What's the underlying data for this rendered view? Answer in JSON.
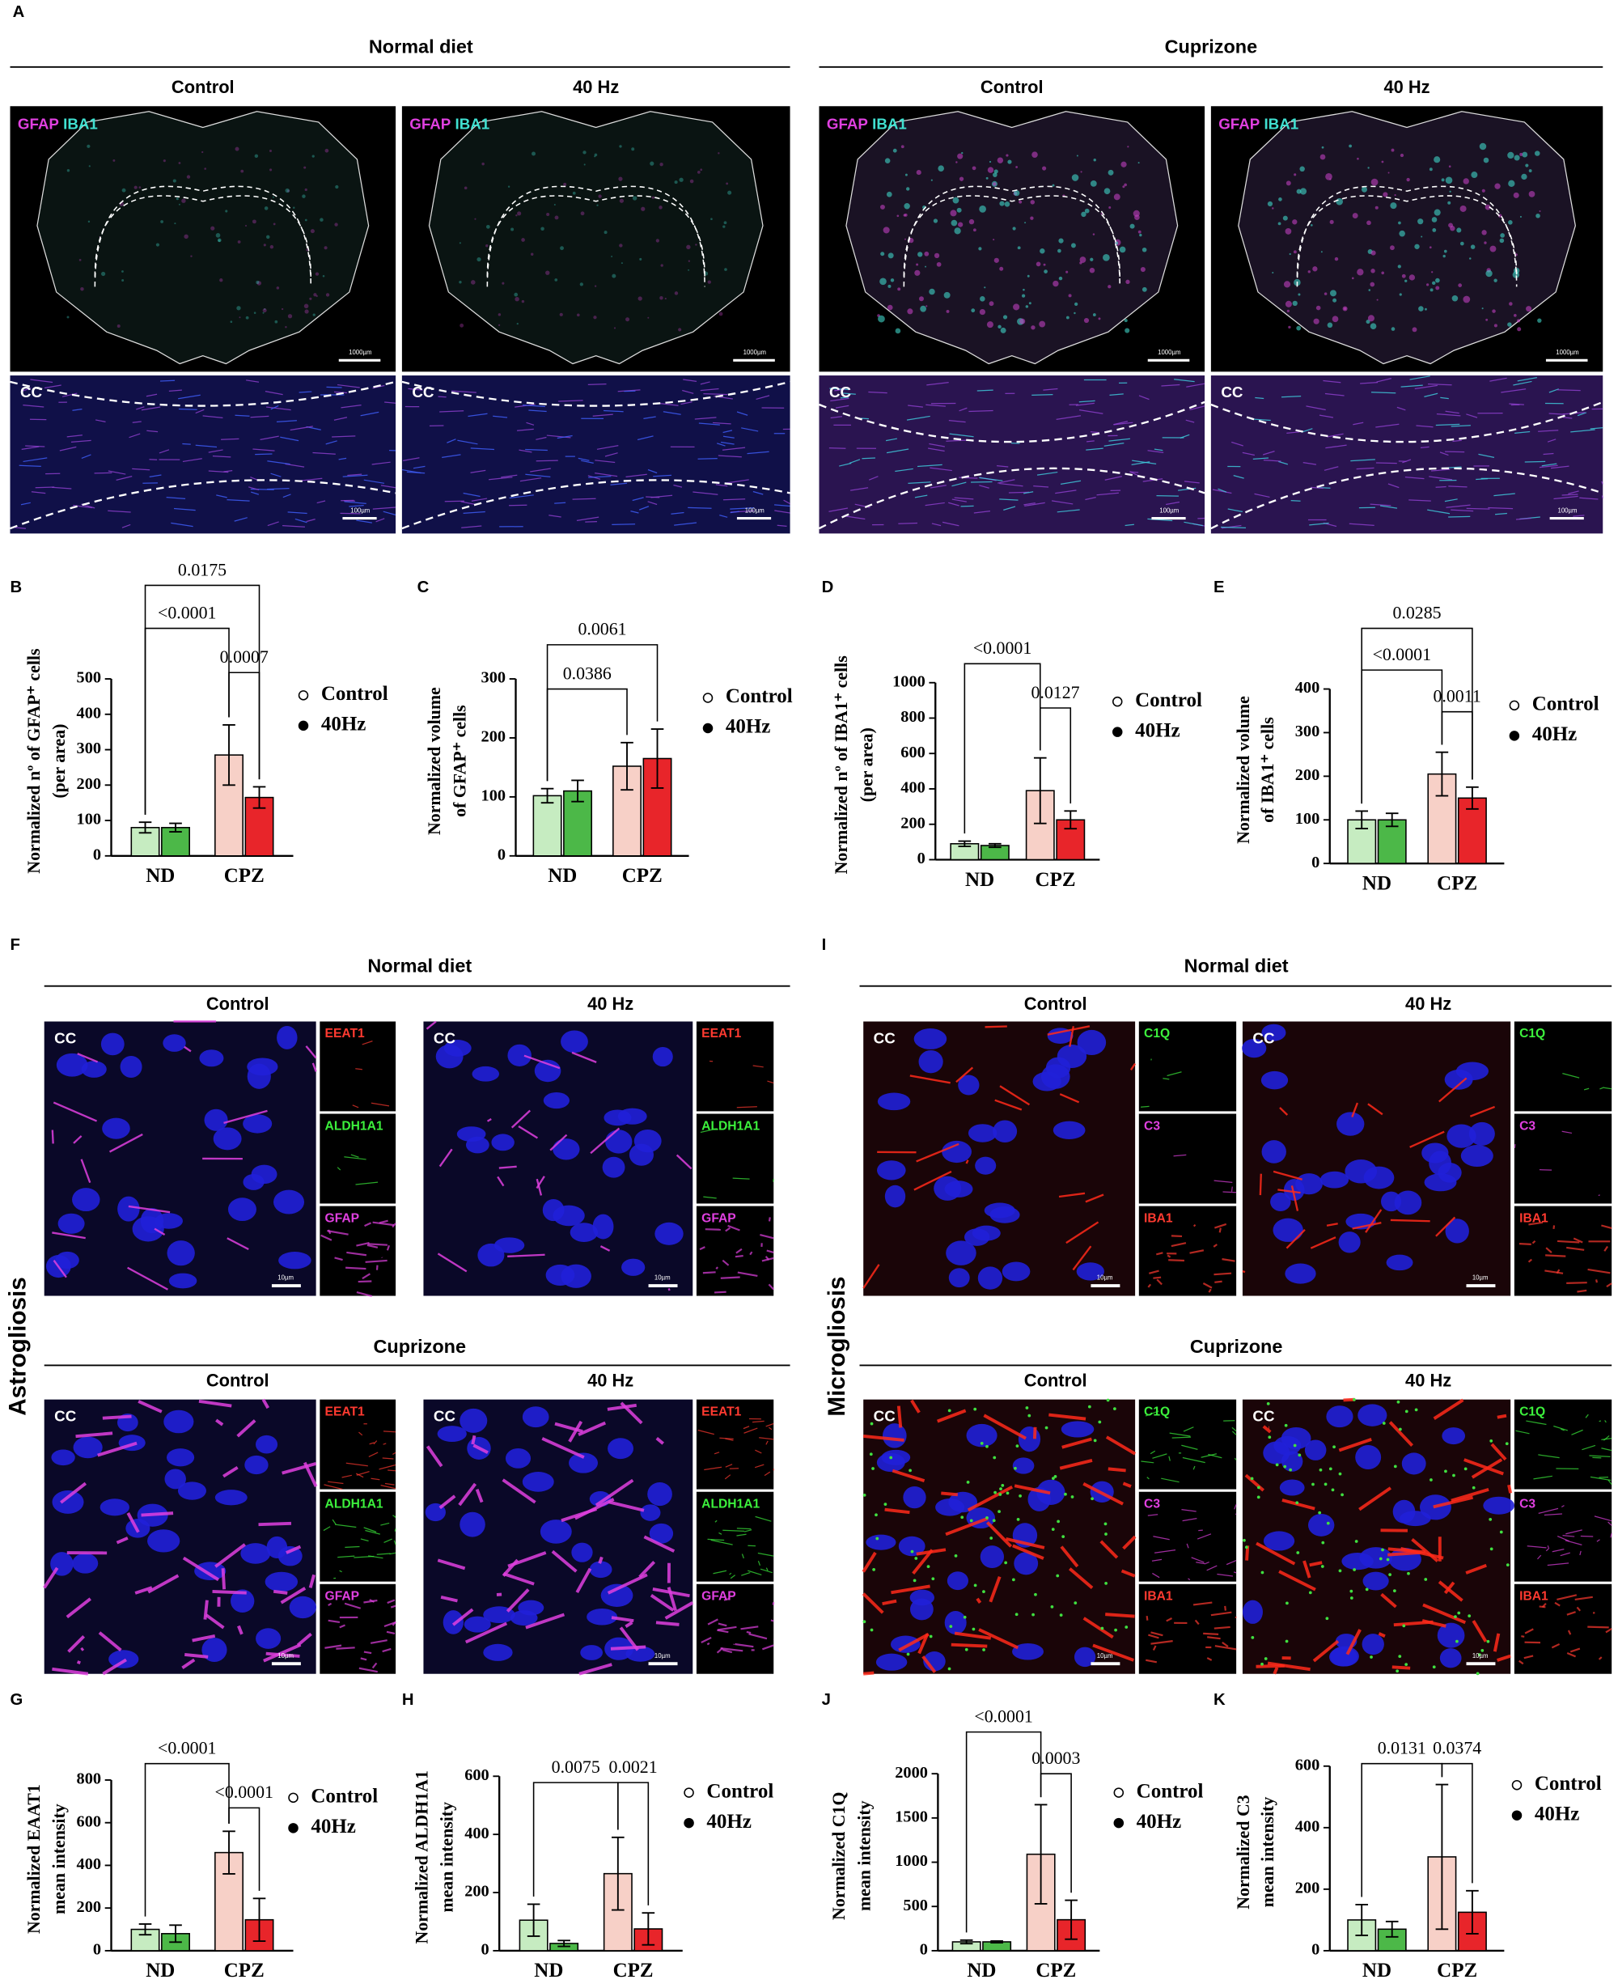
{
  "panel_A": {
    "letter": "A",
    "groups": [
      "Normal diet",
      "Cuprizone"
    ],
    "conditions": [
      "Control",
      "40 Hz"
    ],
    "channels": [
      "GFAP",
      "IBA1"
    ],
    "region": "CC",
    "scale_whole": "1000µm",
    "scale_cc": "100µm"
  },
  "panel_F": {
    "letter": "F",
    "side_label": "Astrogliosis",
    "groups": [
      "Normal diet",
      "Cuprizone"
    ],
    "conditions": [
      "Control",
      "40 Hz"
    ],
    "channels": [
      "EEAT1",
      "ALDH1A1",
      "GFAP"
    ],
    "region": "CC",
    "scale": "10µm"
  },
  "panel_I": {
    "letter": "I",
    "side_label": "Microgliosis",
    "groups": [
      "Normal diet",
      "Cuprizone"
    ],
    "conditions": [
      "Control",
      "40 Hz"
    ],
    "channels": [
      "C1Q",
      "C3",
      "IBA1"
    ],
    "region": "CC",
    "scale": "10µm"
  },
  "chart_data": [
    {
      "type": "bar",
      "panel": "B",
      "ylabel": [
        "Normalized nº of GFAP⁺ cells",
        "(per area)"
      ],
      "categories": [
        "ND",
        "CPZ"
      ],
      "ylim": [
        0,
        500
      ],
      "yticks": [
        0,
        100,
        200,
        300,
        400,
        500
      ],
      "series": [
        {
          "name": "Control",
          "marker": "open",
          "colors": [
            "#c6ecc1",
            "#f7d0c7"
          ],
          "values": [
            80,
            285
          ],
          "errors": [
            15,
            85
          ]
        },
        {
          "name": "40Hz",
          "marker": "filled",
          "colors": [
            "#4cb848",
            "#e8252a"
          ],
          "values": [
            80,
            165
          ],
          "errors": [
            12,
            30
          ]
        }
      ],
      "annotations": [
        "0.0175",
        "<0.0001",
        "0.0007"
      ]
    },
    {
      "type": "bar",
      "panel": "C",
      "ylabel": [
        "Normalized volume",
        "of GFAP⁺ cells"
      ],
      "categories": [
        "ND",
        "CPZ"
      ],
      "ylim": [
        0,
        300
      ],
      "yticks": [
        0,
        100,
        200,
        300
      ],
      "series": [
        {
          "name": "Control",
          "marker": "open",
          "colors": [
            "#c6ecc1",
            "#f7d0c7"
          ],
          "values": [
            102,
            152
          ],
          "errors": [
            12,
            40
          ]
        },
        {
          "name": "40Hz",
          "marker": "filled",
          "colors": [
            "#4cb848",
            "#e8252a"
          ],
          "values": [
            110,
            165
          ],
          "errors": [
            18,
            50
          ]
        }
      ],
      "annotations": [
        "0.0061",
        "0.0386"
      ]
    },
    {
      "type": "bar",
      "panel": "D",
      "ylabel": [
        "Normalized nº of IBA1⁺ cells",
        "(per area)"
      ],
      "categories": [
        "ND",
        "CPZ"
      ],
      "ylim": [
        0,
        1000
      ],
      "yticks": [
        0,
        200,
        400,
        600,
        800,
        1000
      ],
      "series": [
        {
          "name": "Control",
          "marker": "open",
          "colors": [
            "#c6ecc1",
            "#f7d0c7"
          ],
          "values": [
            90,
            390
          ],
          "errors": [
            15,
            185
          ]
        },
        {
          "name": "40Hz",
          "marker": "filled",
          "colors": [
            "#4cb848",
            "#e8252a"
          ],
          "values": [
            80,
            225
          ],
          "errors": [
            10,
            50
          ]
        }
      ],
      "annotations": [
        "<0.0001",
        "0.0127"
      ]
    },
    {
      "type": "bar",
      "panel": "E",
      "ylabel": [
        "Normalized volume",
        "of IBA1⁺ cells"
      ],
      "categories": [
        "ND",
        "CPZ"
      ],
      "ylim": [
        0,
        400
      ],
      "yticks": [
        0,
        100,
        200,
        300,
        400
      ],
      "series": [
        {
          "name": "Control",
          "marker": "open",
          "colors": [
            "#c6ecc1",
            "#f7d0c7"
          ],
          "values": [
            100,
            205
          ],
          "errors": [
            20,
            50
          ]
        },
        {
          "name": "40Hz",
          "marker": "filled",
          "colors": [
            "#4cb848",
            "#e8252a"
          ],
          "values": [
            100,
            150
          ],
          "errors": [
            15,
            25
          ]
        }
      ],
      "annotations": [
        "0.0285",
        "<0.0001",
        "0.0011"
      ]
    },
    {
      "type": "bar",
      "panel": "G",
      "ylabel": [
        "Normalized EAAT1",
        "mean intensity"
      ],
      "categories": [
        "ND",
        "CPZ"
      ],
      "ylim": [
        0,
        800
      ],
      "yticks": [
        0,
        200,
        400,
        600,
        800
      ],
      "series": [
        {
          "name": "Control",
          "marker": "open",
          "colors": [
            "#c6ecc1",
            "#f7d0c7"
          ],
          "values": [
            100,
            460
          ],
          "errors": [
            25,
            100
          ]
        },
        {
          "name": "40Hz",
          "marker": "filled",
          "colors": [
            "#4cb848",
            "#e8252a"
          ],
          "values": [
            80,
            145
          ],
          "errors": [
            40,
            100
          ]
        }
      ],
      "annotations": [
        "<0.0001",
        "<0.0001"
      ]
    },
    {
      "type": "bar",
      "panel": "H",
      "ylabel": [
        "Normalized ALDH1A1",
        "mean intensity"
      ],
      "categories": [
        "ND",
        "CPZ"
      ],
      "ylim": [
        0,
        600
      ],
      "yticks": [
        0,
        200,
        400,
        600
      ],
      "series": [
        {
          "name": "Control",
          "marker": "open",
          "colors": [
            "#c6ecc1",
            "#f7d0c7"
          ],
          "values": [
            105,
            265
          ],
          "errors": [
            55,
            125
          ]
        },
        {
          "name": "40Hz",
          "marker": "filled",
          "colors": [
            "#4cb848",
            "#e8252a"
          ],
          "values": [
            25,
            75
          ],
          "errors": [
            10,
            55
          ]
        }
      ],
      "annotations": [
        "0.0075",
        "0.0021"
      ]
    },
    {
      "type": "bar",
      "panel": "J",
      "ylabel": [
        "Normalized C1Q",
        "mean intensity"
      ],
      "categories": [
        "ND",
        "CPZ"
      ],
      "ylim": [
        0,
        2000
      ],
      "yticks": [
        0,
        500,
        1000,
        1500,
        2000
      ],
      "series": [
        {
          "name": "Control",
          "marker": "open",
          "colors": [
            "#c6ecc1",
            "#f7d0c7"
          ],
          "values": [
            100,
            1090
          ],
          "errors": [
            20,
            560
          ]
        },
        {
          "name": "40Hz",
          "marker": "filled",
          "colors": [
            "#4cb848",
            "#e8252a"
          ],
          "values": [
            100,
            350
          ],
          "errors": [
            10,
            220
          ]
        }
      ],
      "annotations": [
        "<0.0001",
        "0.0003"
      ]
    },
    {
      "type": "bar",
      "panel": "K",
      "ylabel": [
        "Normalized C3",
        "mean intensity"
      ],
      "categories": [
        "ND",
        "CPZ"
      ],
      "ylim": [
        0,
        600
      ],
      "yticks": [
        0,
        200,
        400,
        600
      ],
      "series": [
        {
          "name": "Control",
          "marker": "open",
          "colors": [
            "#c6ecc1",
            "#f7d0c7"
          ],
          "values": [
            100,
            305
          ],
          "errors": [
            50,
            235
          ]
        },
        {
          "name": "40Hz",
          "marker": "filled",
          "colors": [
            "#4cb848",
            "#e8252a"
          ],
          "values": [
            70,
            125
          ],
          "errors": [
            25,
            70
          ]
        }
      ],
      "annotations": [
        "0.0131",
        "0.0374"
      ]
    }
  ]
}
